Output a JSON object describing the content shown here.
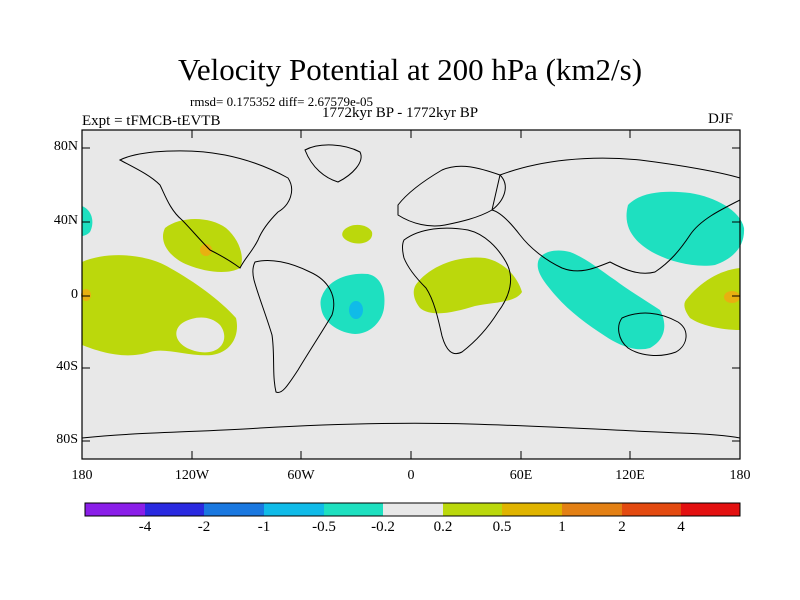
{
  "header": {
    "title": "Velocity Potential at 200 hPa (km2/s)",
    "stats": "rmsd= 0.175352 diff= 2.67579e-05",
    "experiment": "Expt = tFMCB-tEVTB",
    "period": "1772kyr BP - 1772kyr BP",
    "season": "DJF"
  },
  "axes": {
    "lat_labels": [
      "80N",
      "40N",
      "0",
      "40S",
      "80S"
    ],
    "lon_labels": [
      "180",
      "120W",
      "60W",
      "0",
      "60E",
      "120E",
      "180"
    ]
  },
  "colorbar": {
    "labels": [
      "-4",
      "-2",
      "-1",
      "-0.5",
      "-0.2",
      "0.2",
      "0.5",
      "1",
      "2",
      "4"
    ],
    "colors": [
      "#8a1ee8",
      "#2a2ae0",
      "#1a78e0",
      "#10bbe8",
      "#1ee0c0",
      "#e8e8e8",
      "#bbd80c",
      "#e0b400",
      "#e38014",
      "#e34a10",
      "#e31010"
    ]
  },
  "map": {
    "background": "#e8e8e8",
    "positive_fill": "#bbd80c",
    "negative_fill": "#1ee0c0",
    "strong_positive_fill": "#e8b010",
    "strong_negative_fill": "#10bbe8"
  }
}
